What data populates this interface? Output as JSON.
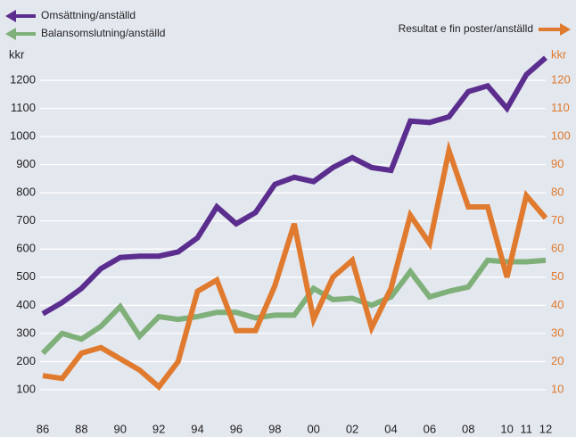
{
  "chart_data": {
    "type": "line",
    "categories": [
      "86",
      null,
      "88",
      null,
      "90",
      null,
      "92",
      null,
      "94",
      null,
      "96",
      null,
      "98",
      null,
      "00",
      null,
      "02",
      null,
      "04",
      null,
      "06",
      null,
      "08",
      null,
      "10",
      "11",
      "12"
    ],
    "ylabel": "kkr",
    "y2label": "kkr",
    "ylim": [
      0,
      1300
    ],
    "yticks": [
      100,
      200,
      300,
      400,
      500,
      600,
      700,
      800,
      900,
      1000,
      1100,
      1200
    ],
    "y2lim": [
      0,
      130
    ],
    "y2ticks": [
      10,
      20,
      30,
      40,
      50,
      60,
      70,
      80,
      90,
      100,
      110,
      120
    ],
    "grid": true,
    "series": [
      {
        "name": "Omsättning/anställd",
        "color": "#5b2d8e",
        "values": [
          370,
          410,
          460,
          530,
          570,
          575,
          575,
          590,
          640,
          750,
          690,
          730,
          830,
          855,
          840,
          890,
          925,
          890,
          880,
          1055,
          1050,
          1070,
          1160,
          1180,
          1100,
          1220,
          1280
        ]
      },
      {
        "name": "Balansomslutning/anställd",
        "color": "#7fb07a",
        "values": [
          230,
          300,
          280,
          325,
          395,
          290,
          360,
          350,
          360,
          375,
          375,
          355,
          365,
          365,
          460,
          420,
          425,
          400,
          430,
          520,
          430,
          450,
          465,
          560,
          555,
          555,
          560
        ]
      },
      {
        "name": "Resultat e fin poster/anställd",
        "color": "#e07a2e",
        "axis": "y2",
        "values": [
          15,
          14,
          23,
          25,
          21,
          17,
          11,
          20,
          45,
          49,
          31,
          31,
          47,
          69,
          35,
          50,
          56,
          32,
          46,
          72,
          62,
          95,
          75,
          75,
          50,
          79,
          71
        ]
      }
    ]
  }
}
